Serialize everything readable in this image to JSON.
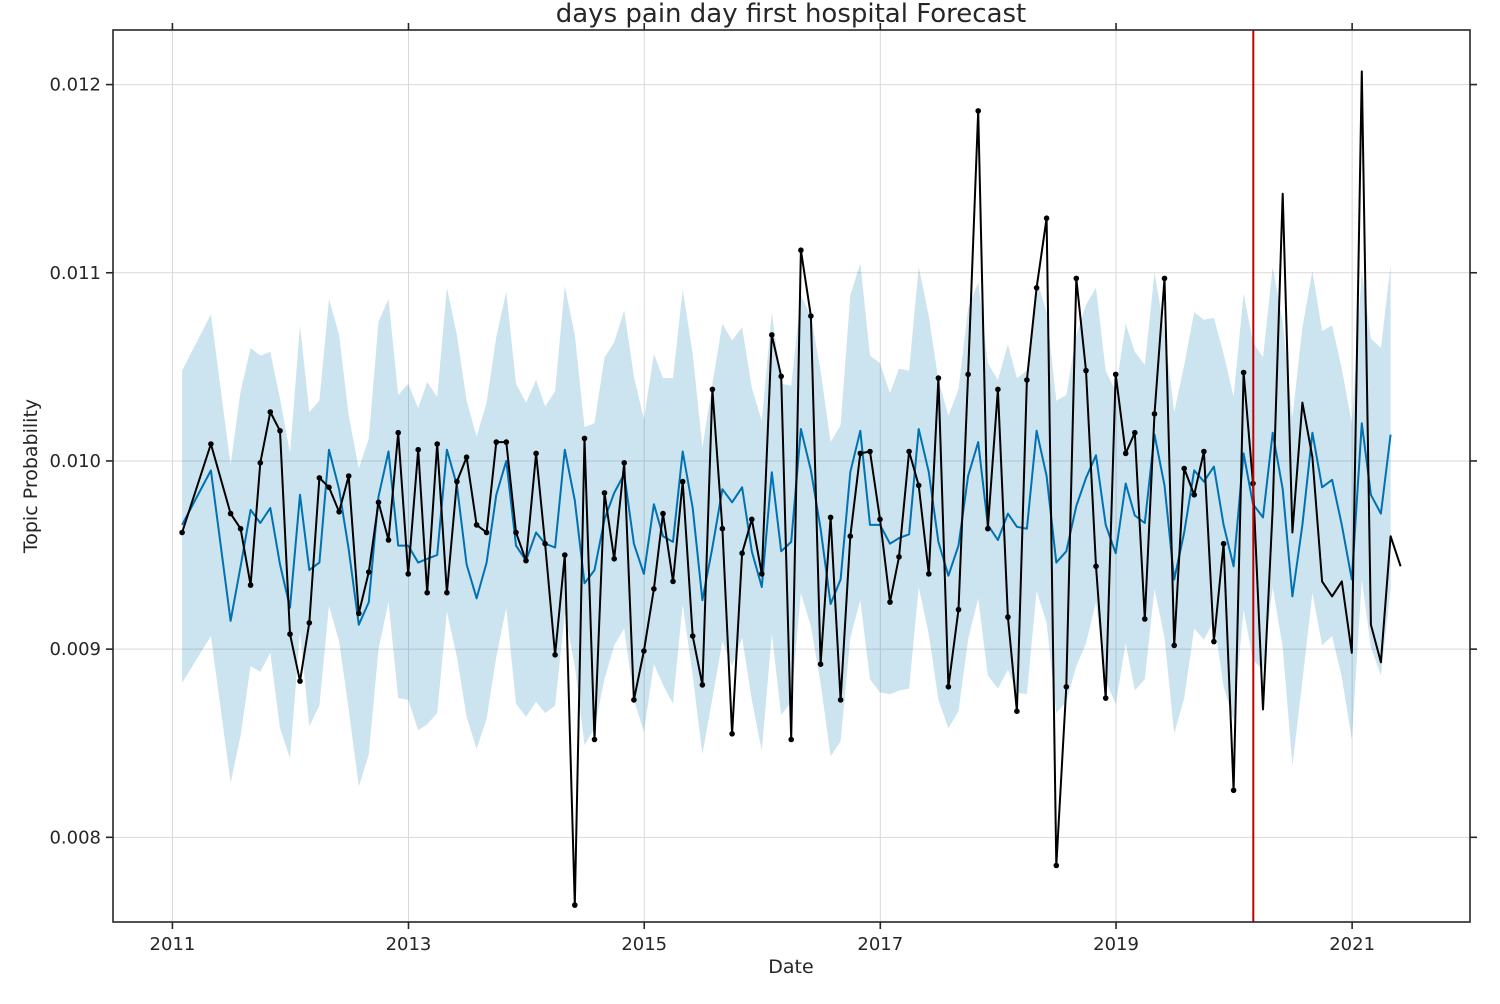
{
  "chart_data": {
    "type": "line",
    "title": "days pain day first hospital Forecast",
    "xlabel": "Date",
    "ylabel": "Topic Probability",
    "xlim": [
      "2010-07-01",
      "2022-01-01"
    ],
    "ylim": [
      0.00755,
      0.01229
    ],
    "x_ticks": [
      {
        "date": "2011-01-01",
        "label": "2011"
      },
      {
        "date": "2013-01-01",
        "label": "2013"
      },
      {
        "date": "2015-01-01",
        "label": "2015"
      },
      {
        "date": "2017-01-01",
        "label": "2017"
      },
      {
        "date": "2019-01-01",
        "label": "2019"
      },
      {
        "date": "2021-01-01",
        "label": "2021"
      }
    ],
    "y_ticks": [
      {
        "value": 0.008,
        "label": "0.008"
      },
      {
        "value": 0.009,
        "label": "0.009"
      },
      {
        "value": 0.01,
        "label": "0.010"
      },
      {
        "value": 0.011,
        "label": "0.011"
      },
      {
        "value": 0.012,
        "label": "0.012"
      }
    ],
    "grid": true,
    "changepoint_date": "2020-03-01",
    "colors": {
      "observed": "#000000",
      "forecast": "#0072B2",
      "interval": "#0072B2",
      "changepoint": "#C00000",
      "grid": "#d9d9d9"
    },
    "series": [
      {
        "role": "observed",
        "marker": "point",
        "x": [
          "2011-01-31",
          "2011-04-30",
          "2011-06-30",
          "2011-07-31",
          "2011-08-31",
          "2011-09-30",
          "2011-10-31",
          "2011-11-30",
          "2011-12-31",
          "2012-01-31",
          "2012-02-29",
          "2012-03-31",
          "2012-04-30",
          "2012-05-31",
          "2012-06-30",
          "2012-07-31",
          "2012-08-31",
          "2012-09-30",
          "2012-10-31",
          "2012-11-30",
          "2012-12-31",
          "2013-01-31",
          "2013-02-28",
          "2013-03-31",
          "2013-04-30",
          "2013-05-31",
          "2013-06-30",
          "2013-07-31",
          "2013-08-31",
          "2013-09-30",
          "2013-10-31",
          "2013-11-30",
          "2013-12-31",
          "2014-01-31",
          "2014-02-28",
          "2014-03-31",
          "2014-04-30",
          "2014-05-31",
          "2014-06-30",
          "2014-07-31",
          "2014-08-31",
          "2014-09-30",
          "2014-10-31",
          "2014-11-30",
          "2014-12-31",
          "2015-01-31",
          "2015-02-28",
          "2015-03-31",
          "2015-04-30",
          "2015-05-31",
          "2015-06-30",
          "2015-07-31",
          "2015-08-31",
          "2015-09-30",
          "2015-10-31",
          "2015-11-30",
          "2015-12-31",
          "2016-01-31",
          "2016-02-29",
          "2016-03-31",
          "2016-04-30",
          "2016-05-31",
          "2016-06-30",
          "2016-07-31",
          "2016-08-31",
          "2016-09-30",
          "2016-10-31",
          "2016-11-30",
          "2016-12-31",
          "2017-01-31",
          "2017-02-28",
          "2017-03-31",
          "2017-04-30",
          "2017-05-31",
          "2017-06-30",
          "2017-07-31",
          "2017-08-31",
          "2017-09-30",
          "2017-10-31",
          "2017-11-30",
          "2017-12-31",
          "2018-01-31",
          "2018-02-28",
          "2018-03-31",
          "2018-04-30",
          "2018-05-31",
          "2018-06-30",
          "2018-07-31",
          "2018-08-31",
          "2018-09-30",
          "2018-10-31",
          "2018-11-30",
          "2018-12-31",
          "2019-01-31",
          "2019-02-28",
          "2019-03-31",
          "2019-04-30",
          "2019-05-31",
          "2019-06-30",
          "2019-07-31",
          "2019-08-31",
          "2019-09-30",
          "2019-10-31",
          "2019-11-30",
          "2019-12-31",
          "2020-01-31",
          "2020-02-29"
        ],
        "values": [
          0.00962,
          0.01009,
          0.00972,
          0.00964,
          0.00934,
          0.00999,
          0.01026,
          0.01016,
          0.00908,
          0.00883,
          0.00914,
          0.00991,
          0.00986,
          0.00973,
          0.00992,
          0.00919,
          0.00941,
          0.00978,
          0.00958,
          0.01015,
          0.0094,
          0.01006,
          0.0093,
          0.01009,
          0.0093,
          0.00989,
          0.01002,
          0.00966,
          0.00962,
          0.0101,
          0.0101,
          0.00962,
          0.00947,
          0.01004,
          0.00956,
          0.00897,
          0.0095,
          0.00764,
          0.01012,
          0.00852,
          0.00983,
          0.00948,
          0.00999,
          0.00873,
          0.00899,
          0.00932,
          0.00972,
          0.00936,
          0.00989,
          0.00907,
          0.00881,
          0.01038,
          0.00964,
          0.00855,
          0.00951,
          0.00969,
          0.0094,
          0.01067,
          0.01045,
          0.00852,
          0.01112,
          0.01077,
          0.00892,
          0.0097,
          0.00873,
          0.0096,
          0.01004,
          0.01005,
          0.00969,
          0.00925,
          0.00949,
          0.01005,
          0.00987,
          0.0094,
          0.01044,
          0.0088,
          0.00921,
          0.01046,
          0.01186,
          0.00964,
          0.01038,
          0.00917,
          0.00867,
          0.01043,
          0.01092,
          0.01129,
          0.00785,
          0.0088,
          0.01097,
          0.01048,
          0.00944,
          0.00874,
          0.01046,
          0.01004,
          0.01015,
          0.00916,
          0.01025,
          0.01097,
          0.00902,
          0.00996,
          0.00982,
          0.01005,
          0.00904,
          0.00956,
          0.00825,
          0.01047,
          0.00988
        ]
      },
      {
        "role": "actual-continued",
        "marker": "none",
        "x": [
          "2020-02-29",
          "2020-03-31",
          "2020-04-30",
          "2020-05-31",
          "2020-06-30",
          "2020-07-31",
          "2020-08-31",
          "2020-09-30",
          "2020-10-31",
          "2020-11-30",
          "2020-12-31",
          "2021-01-31",
          "2021-02-28",
          "2021-03-31",
          "2021-04-30",
          "2021-05-31",
          "2021-06-30"
        ],
        "values": [
          0.00988,
          0.00868,
          0.00975,
          0.01142,
          0.00962,
          0.01031,
          0.01002,
          0.00936,
          0.00928,
          0.00936,
          0.00898,
          0.01207,
          0.00913,
          0.00893,
          0.0096,
          0.00944,
          null
        ]
      },
      {
        "role": "forecast",
        "marker": "none",
        "x": [
          "2011-01-31",
          "2011-04-30",
          "2011-06-30",
          "2011-07-31",
          "2011-08-31",
          "2011-09-30",
          "2011-10-31",
          "2011-11-30",
          "2011-12-31",
          "2012-01-31",
          "2012-02-29",
          "2012-03-31",
          "2012-04-30",
          "2012-05-31",
          "2012-06-30",
          "2012-07-31",
          "2012-08-31",
          "2012-09-30",
          "2012-10-31",
          "2012-11-30",
          "2012-12-31",
          "2013-01-31",
          "2013-02-28",
          "2013-03-31",
          "2013-04-30",
          "2013-05-31",
          "2013-06-30",
          "2013-07-31",
          "2013-08-31",
          "2013-09-30",
          "2013-10-31",
          "2013-11-30",
          "2013-12-31",
          "2014-01-31",
          "2014-02-28",
          "2014-03-31",
          "2014-04-30",
          "2014-05-31",
          "2014-06-30",
          "2014-07-31",
          "2014-08-31",
          "2014-09-30",
          "2014-10-31",
          "2014-11-30",
          "2014-12-31",
          "2015-01-31",
          "2015-02-28",
          "2015-03-31",
          "2015-04-30",
          "2015-05-31",
          "2015-06-30",
          "2015-07-31",
          "2015-08-31",
          "2015-09-30",
          "2015-10-31",
          "2015-11-30",
          "2015-12-31",
          "2016-01-31",
          "2016-02-29",
          "2016-03-31",
          "2016-04-30",
          "2016-05-31",
          "2016-06-30",
          "2016-07-31",
          "2016-08-31",
          "2016-09-30",
          "2016-10-31",
          "2016-11-30",
          "2016-12-31",
          "2017-01-31",
          "2017-02-28",
          "2017-03-31",
          "2017-04-30",
          "2017-05-31",
          "2017-06-30",
          "2017-07-31",
          "2017-08-31",
          "2017-09-30",
          "2017-10-31",
          "2017-11-30",
          "2017-12-31",
          "2018-01-31",
          "2018-02-28",
          "2018-03-31",
          "2018-04-30",
          "2018-05-31",
          "2018-06-30",
          "2018-07-31",
          "2018-08-31",
          "2018-09-30",
          "2018-10-31",
          "2018-11-30",
          "2018-12-31",
          "2019-01-31",
          "2019-02-28",
          "2019-03-31",
          "2019-04-30",
          "2019-05-31",
          "2019-06-30",
          "2019-07-31",
          "2019-08-31",
          "2019-09-30",
          "2019-10-31",
          "2019-11-30",
          "2019-12-31",
          "2020-01-31",
          "2020-02-29",
          "2020-03-31",
          "2020-04-30",
          "2020-05-31",
          "2020-06-30",
          "2020-07-31",
          "2020-08-31",
          "2020-09-30",
          "2020-10-31",
          "2020-11-30",
          "2020-12-31",
          "2021-01-31",
          "2021-02-28",
          "2021-03-31",
          "2021-04-30"
        ],
        "values": [
          0.00966,
          0.00995,
          0.00915,
          0.00944,
          0.00974,
          0.00967,
          0.00975,
          0.00945,
          0.00922,
          0.00982,
          0.00942,
          0.00946,
          0.01006,
          0.00985,
          0.00953,
          0.00913,
          0.00925,
          0.00981,
          0.01005,
          0.00955,
          0.00955,
          0.00946,
          0.00948,
          0.0095,
          0.01006,
          0.00987,
          0.00945,
          0.00927,
          0.00946,
          0.00982,
          0.01,
          0.00955,
          0.00947,
          0.00962,
          0.00956,
          0.00954,
          0.01006,
          0.00979,
          0.00935,
          0.00942,
          0.00969,
          0.00983,
          0.00993,
          0.00956,
          0.0094,
          0.00977,
          0.0096,
          0.00957,
          0.01005,
          0.00975,
          0.00926,
          0.00954,
          0.00985,
          0.00978,
          0.00986,
          0.00952,
          0.00933,
          0.00994,
          0.00952,
          0.00957,
          0.01017,
          0.00995,
          0.00964,
          0.00924,
          0.00937,
          0.00994,
          0.01016,
          0.00966,
          0.00966,
          0.00956,
          0.00959,
          0.00961,
          0.01017,
          0.00994,
          0.00957,
          0.00939,
          0.00955,
          0.00992,
          0.0101,
          0.00966,
          0.00958,
          0.00972,
          0.00965,
          0.00964,
          0.01016,
          0.00992,
          0.00946,
          0.00952,
          0.00976,
          0.00991,
          0.01003,
          0.00966,
          0.00951,
          0.00988,
          0.00971,
          0.00967,
          0.01014,
          0.00987,
          0.00937,
          0.00962,
          0.00995,
          0.00989,
          0.00997,
          0.00966,
          0.00944,
          0.01004,
          0.00977,
          0.0097,
          0.01015,
          0.00985,
          0.00928,
          0.00966,
          0.01015,
          0.00986,
          0.0099,
          0.00966,
          0.00937,
          0.0102,
          0.00982,
          0.00972,
          0.01014
        ]
      }
    ],
    "interval": {
      "role": "uncertainty-interval",
      "x": [
        "2011-01-31",
        "2011-04-30",
        "2011-06-30",
        "2011-07-31",
        "2011-08-31",
        "2011-09-30",
        "2011-10-31",
        "2011-11-30",
        "2011-12-31",
        "2012-01-31",
        "2012-02-29",
        "2012-03-31",
        "2012-04-30",
        "2012-05-31",
        "2012-06-30",
        "2012-07-31",
        "2012-08-31",
        "2012-09-30",
        "2012-10-31",
        "2012-11-30",
        "2012-12-31",
        "2013-01-31",
        "2013-02-28",
        "2013-03-31",
        "2013-04-30",
        "2013-05-31",
        "2013-06-30",
        "2013-07-31",
        "2013-08-31",
        "2013-09-30",
        "2013-10-31",
        "2013-11-30",
        "2013-12-31",
        "2014-01-31",
        "2014-02-28",
        "2014-03-31",
        "2014-04-30",
        "2014-05-31",
        "2014-06-30",
        "2014-07-31",
        "2014-08-31",
        "2014-09-30",
        "2014-10-31",
        "2014-11-30",
        "2014-12-31",
        "2015-01-31",
        "2015-02-28",
        "2015-03-31",
        "2015-04-30",
        "2015-05-31",
        "2015-06-30",
        "2015-07-31",
        "2015-08-31",
        "2015-09-30",
        "2015-10-31",
        "2015-11-30",
        "2015-12-31",
        "2016-01-31",
        "2016-02-29",
        "2016-03-31",
        "2016-04-30",
        "2016-05-31",
        "2016-06-30",
        "2016-07-31",
        "2016-08-31",
        "2016-09-30",
        "2016-10-31",
        "2016-11-30",
        "2016-12-31",
        "2017-01-31",
        "2017-02-28",
        "2017-03-31",
        "2017-04-30",
        "2017-05-31",
        "2017-06-30",
        "2017-07-31",
        "2017-08-31",
        "2017-09-30",
        "2017-10-31",
        "2017-11-30",
        "2017-12-31",
        "2018-01-31",
        "2018-02-28",
        "2018-03-31",
        "2018-04-30",
        "2018-05-31",
        "2018-06-30",
        "2018-07-31",
        "2018-08-31",
        "2018-09-30",
        "2018-10-31",
        "2018-11-30",
        "2018-12-31",
        "2019-01-31",
        "2019-02-28",
        "2019-03-31",
        "2019-04-30",
        "2019-05-31",
        "2019-06-30",
        "2019-07-31",
        "2019-08-31",
        "2019-09-30",
        "2019-10-31",
        "2019-11-30",
        "2019-12-31",
        "2020-01-31",
        "2020-02-29",
        "2020-03-31",
        "2020-04-30",
        "2020-05-31",
        "2020-06-30",
        "2020-07-31",
        "2020-08-31",
        "2020-09-30",
        "2020-10-31",
        "2020-11-30",
        "2020-12-31",
        "2021-01-31",
        "2021-02-28",
        "2021-03-31",
        "2021-04-30"
      ],
      "upper": [
        0.01048,
        0.01078,
        0.00998,
        0.01037,
        0.0106,
        0.01056,
        0.01058,
        0.01033,
        0.01004,
        0.01072,
        0.01026,
        0.01032,
        0.01086,
        0.01067,
        0.01024,
        0.00996,
        0.01012,
        0.01074,
        0.01086,
        0.01035,
        0.01041,
        0.01028,
        0.01042,
        0.01034,
        0.01092,
        0.01067,
        0.01032,
        0.01013,
        0.01031,
        0.01066,
        0.0109,
        0.01041,
        0.01031,
        0.01043,
        0.01029,
        0.01037,
        0.01093,
        0.01067,
        0.01018,
        0.0102,
        0.01055,
        0.01063,
        0.0108,
        0.01045,
        0.01022,
        0.01057,
        0.01044,
        0.01044,
        0.01091,
        0.01057,
        0.01007,
        0.01041,
        0.01073,
        0.01064,
        0.01071,
        0.01039,
        0.01021,
        0.01079,
        0.01041,
        0.0104,
        0.01088,
        0.01077,
        0.01048,
        0.0101,
        0.01019,
        0.01088,
        0.01105,
        0.01056,
        0.01052,
        0.01036,
        0.01049,
        0.01048,
        0.01103,
        0.01077,
        0.01043,
        0.01024,
        0.01038,
        0.01081,
        0.01095,
        0.01052,
        0.01043,
        0.01062,
        0.01044,
        0.01048,
        0.01097,
        0.01079,
        0.01032,
        0.01035,
        0.01067,
        0.01083,
        0.01092,
        0.01048,
        0.01037,
        0.01073,
        0.01058,
        0.01051,
        0.011,
        0.01069,
        0.01026,
        0.01051,
        0.01079,
        0.01075,
        0.01076,
        0.01057,
        0.01034,
        0.01089,
        0.01063,
        0.01055,
        0.01103,
        0.01074,
        0.01023,
        0.01071,
        0.01101,
        0.01069,
        0.01072,
        0.01049,
        0.0102,
        0.01101,
        0.01065,
        0.0106,
        0.01104
      ],
      "lower": [
        0.00882,
        0.00907,
        0.00829,
        0.00854,
        0.00891,
        0.00888,
        0.00898,
        0.00858,
        0.00842,
        0.00909,
        0.00859,
        0.0087,
        0.00923,
        0.00904,
        0.00868,
        0.00827,
        0.00844,
        0.009,
        0.00925,
        0.00874,
        0.00873,
        0.00857,
        0.0086,
        0.00866,
        0.0092,
        0.00896,
        0.00864,
        0.00847,
        0.00863,
        0.00896,
        0.00922,
        0.00871,
        0.00864,
        0.00872,
        0.00866,
        0.0087,
        0.00919,
        0.00891,
        0.00849,
        0.00858,
        0.00884,
        0.00902,
        0.00911,
        0.00873,
        0.00856,
        0.00892,
        0.00881,
        0.00871,
        0.00924,
        0.00886,
        0.00844,
        0.00874,
        0.00904,
        0.00891,
        0.00906,
        0.00873,
        0.00846,
        0.00908,
        0.00865,
        0.00872,
        0.0093,
        0.00912,
        0.00882,
        0.00843,
        0.00851,
        0.00906,
        0.00926,
        0.00884,
        0.00877,
        0.00876,
        0.00878,
        0.00879,
        0.00933,
        0.00908,
        0.00873,
        0.00858,
        0.00867,
        0.00905,
        0.00927,
        0.00886,
        0.00879,
        0.00889,
        0.00877,
        0.00876,
        0.00931,
        0.00914,
        0.00866,
        0.00872,
        0.00891,
        0.00903,
        0.00925,
        0.00883,
        0.00871,
        0.00903,
        0.00878,
        0.00884,
        0.00932,
        0.00906,
        0.00855,
        0.00874,
        0.00911,
        0.00905,
        0.00915,
        0.0088,
        0.00862,
        0.00921,
        0.00894,
        0.00889,
        0.00933,
        0.00901,
        0.00838,
        0.00883,
        0.0093,
        0.00902,
        0.00907,
        0.00885,
        0.00852,
        0.00937,
        0.00901,
        0.00886,
        0.00932
      ]
    }
  }
}
